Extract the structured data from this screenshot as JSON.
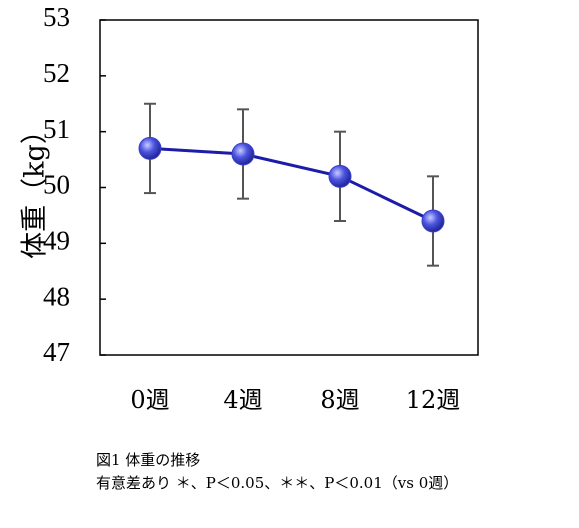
{
  "chart_data": {
    "type": "line",
    "y_label": "体重（kg）",
    "categories": [
      "0週",
      "4週",
      "8週",
      "12週"
    ],
    "series": [
      {
        "color": "#1c1ca8",
        "marker_color": "#3a3fd0",
        "values": [
          50.7,
          50.6,
          50.2,
          49.4
        ],
        "errors": [
          0.8,
          0.8,
          0.8,
          0.8
        ]
      }
    ],
    "ylim": [
      47,
      53
    ],
    "yticks": [
      47,
      48,
      49,
      50,
      51,
      52,
      53
    ],
    "grid": false,
    "caption": [
      "図1 体重の推移",
      "有意差あり ＊、P＜0.05、＊＊、P＜0.01（vs 0週）"
    ]
  }
}
